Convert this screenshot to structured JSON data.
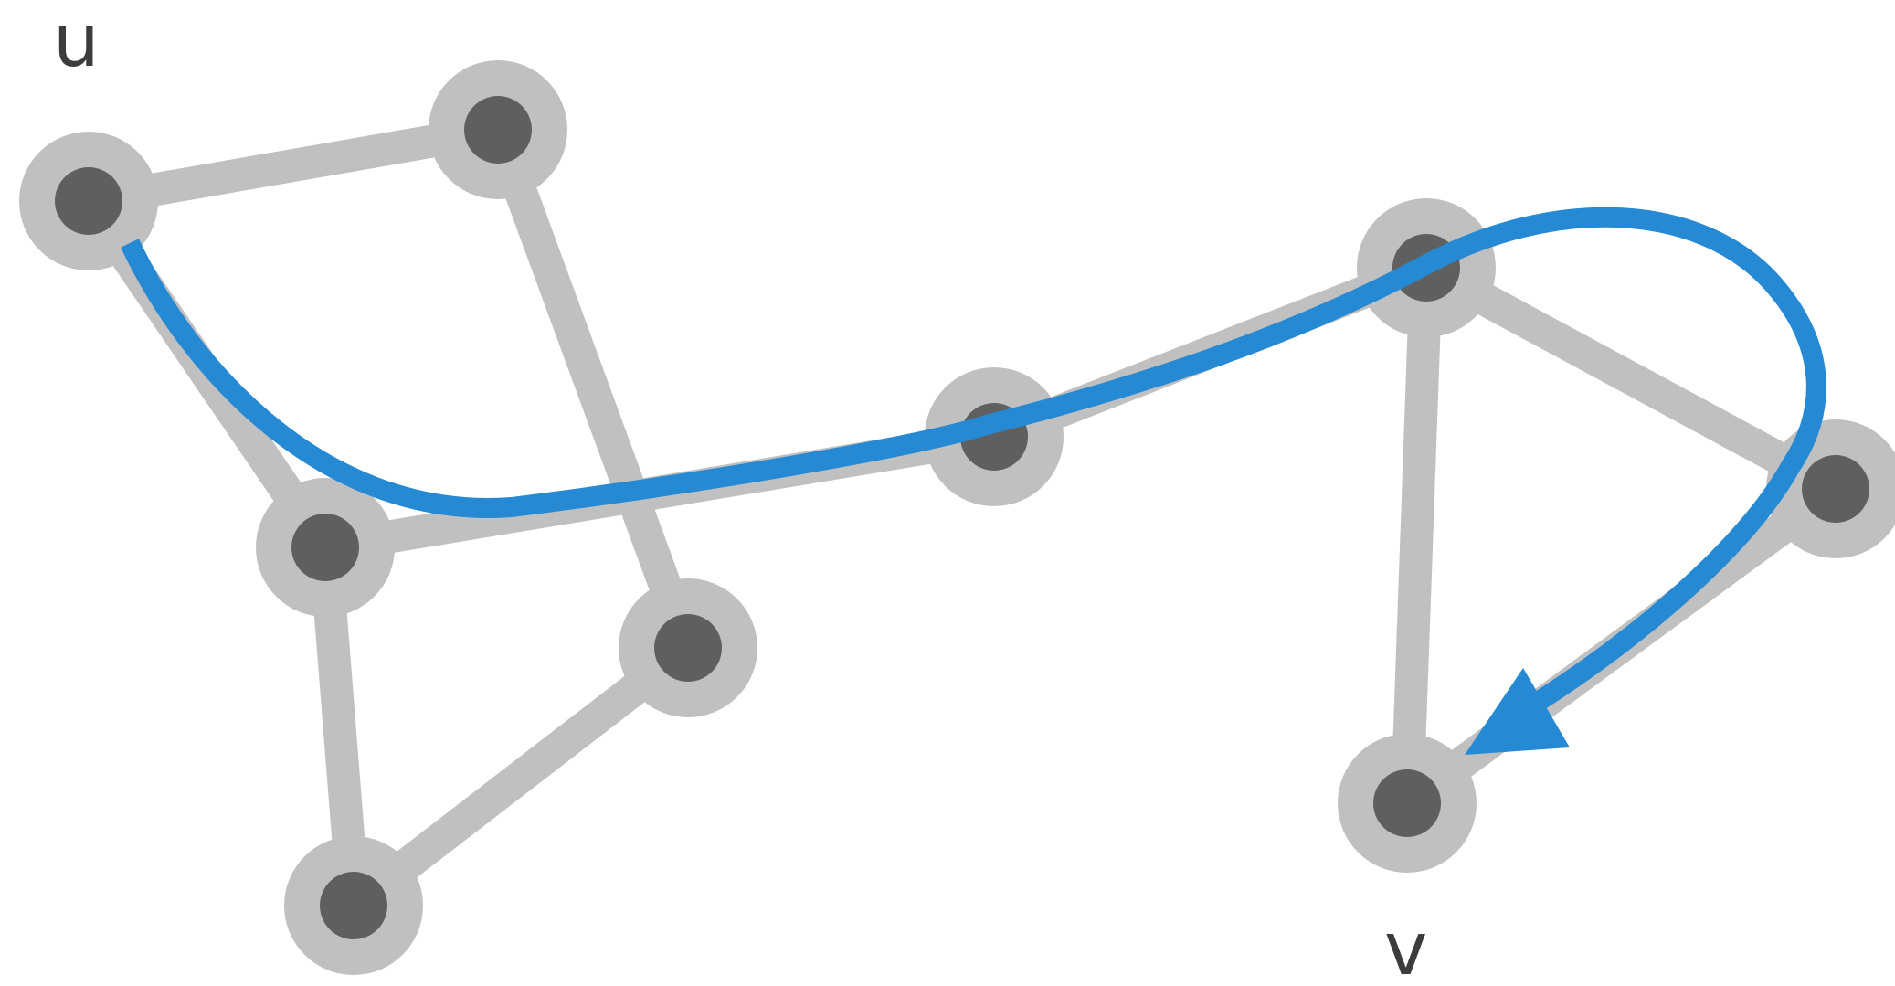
{
  "labels": {
    "u": "u",
    "v": "v"
  },
  "colors": {
    "background": "#ffffff",
    "edge": "#c0c0c0",
    "node_ring": "#c0c0c0",
    "node_core": "#5f5f5f",
    "path": "#2589d3",
    "label": "#3c3c3c"
  },
  "nodes": [
    {
      "id": "u"
    },
    {
      "id": "n2"
    },
    {
      "id": "n3"
    },
    {
      "id": "n4"
    },
    {
      "id": "n5"
    },
    {
      "id": "n6"
    },
    {
      "id": "n7"
    },
    {
      "id": "n8"
    },
    {
      "id": "v"
    }
  ],
  "edges": [
    [
      "u",
      "n2"
    ],
    [
      "u",
      "n3"
    ],
    [
      "n2",
      "n5"
    ],
    [
      "n3",
      "n4"
    ],
    [
      "n3",
      "n6"
    ],
    [
      "n4",
      "n5"
    ],
    [
      "n6",
      "n7"
    ],
    [
      "n7",
      "n8"
    ],
    [
      "n7",
      "v"
    ],
    [
      "n8",
      "v"
    ]
  ]
}
